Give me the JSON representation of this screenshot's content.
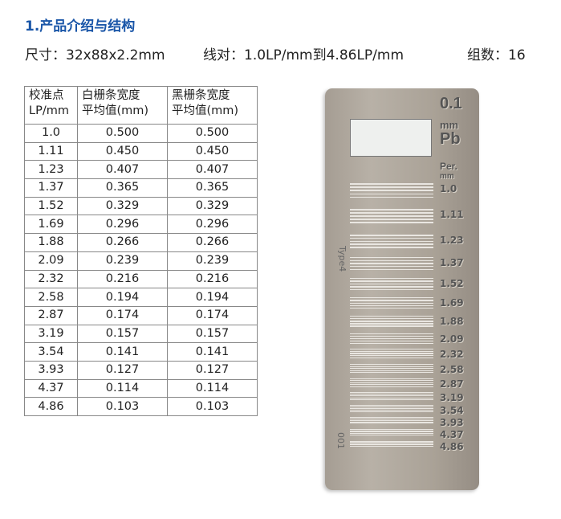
{
  "title": "1.产品介绍与结构",
  "specs": {
    "size": "尺寸：32x88x2.2mm",
    "line_pairs": "线对：1.0LP/mm到4.86LP/mm",
    "groups": "组数：16"
  },
  "table": {
    "headers": [
      [
        "校准点",
        "LP/mm"
      ],
      [
        "白栅条宽度",
        "平均值(mm)"
      ],
      [
        "黑栅条宽度",
        "平均值(mm)"
      ]
    ],
    "rows": [
      [
        "1.0",
        "0.500",
        "0.500"
      ],
      [
        "1.11",
        "0.450",
        "0.450"
      ],
      [
        "1.23",
        "0.407",
        "0.407"
      ],
      [
        "1.37",
        "0.365",
        "0.365"
      ],
      [
        "1.52",
        "0.329",
        "0.329"
      ],
      [
        "1.69",
        "0.296",
        "0.296"
      ],
      [
        "1.88",
        "0.266",
        "0.266"
      ],
      [
        "2.09",
        "0.239",
        "0.239"
      ],
      [
        "2.32",
        "0.216",
        "0.216"
      ],
      [
        "2.58",
        "0.194",
        "0.194"
      ],
      [
        "2.87",
        "0.174",
        "0.174"
      ],
      [
        "3.19",
        "0.157",
        "0.157"
      ],
      [
        "3.54",
        "0.141",
        "0.141"
      ],
      [
        "3.93",
        "0.127",
        "0.127"
      ],
      [
        "4.37",
        "0.114",
        "0.114"
      ],
      [
        "4.86",
        "0.103",
        "0.103"
      ]
    ]
  },
  "plate": {
    "thickness": "0.1",
    "unit": "mm",
    "material": "Pb",
    "per": "Per.",
    "per_unit": "mm",
    "type": "Type4",
    "serial": "001",
    "labels": [
      "1.0",
      "1.11",
      "1.23",
      "1.37",
      "1.52",
      "1.69",
      "1.88",
      "2.09",
      "2.32",
      "2.58",
      "2.87",
      "3.19",
      "3.54",
      "3.93",
      "4.37",
      "4.86"
    ]
  }
}
